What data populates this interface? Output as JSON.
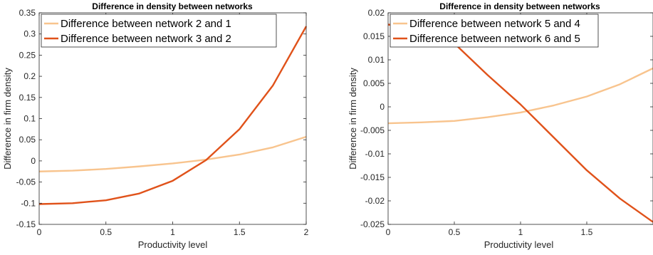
{
  "chart_data": [
    {
      "type": "line",
      "title": "Difference in density between networks",
      "xlabel": "Productivity level",
      "ylabel": "Difference in firm density",
      "xlim": [
        0,
        2
      ],
      "ylim": [
        -0.15,
        0.35
      ],
      "xticks": [
        "0",
        "0.5",
        "1",
        "1.5",
        "2"
      ],
      "yticks": [
        "-0.15",
        "-0.1",
        "-0.05",
        "0",
        "0.05",
        "0.1",
        "0.15",
        "0.2",
        "0.25",
        "0.3",
        "0.35"
      ],
      "legend_position": "top-left",
      "grid": false,
      "series": [
        {
          "name": "Difference between network 2 and 1",
          "color": "#F8C48E",
          "x": [
            0,
            0.25,
            0.5,
            0.75,
            1.0,
            1.25,
            1.5,
            1.75,
            2.0
          ],
          "values": [
            -0.025,
            -0.023,
            -0.019,
            -0.013,
            -0.006,
            0.003,
            0.015,
            0.032,
            0.057
          ]
        },
        {
          "name": "Difference between network 3 and 2",
          "color": "#E0521A",
          "x": [
            0,
            0.25,
            0.5,
            0.75,
            1.0,
            1.25,
            1.5,
            1.75,
            2.0
          ],
          "values": [
            -0.102,
            -0.1,
            -0.093,
            -0.077,
            -0.047,
            0.002,
            0.075,
            0.178,
            0.318
          ]
        }
      ]
    },
    {
      "type": "line",
      "title": "Difference in density between networks",
      "xlabel": "Productivity level",
      "ylabel": "Difference in firm density",
      "xlim": [
        0,
        2
      ],
      "ylim": [
        -0.025,
        0.02
      ],
      "xticks": [
        "0",
        "0.5",
        "1",
        "1.5"
      ],
      "yticks": [
        "-0.025",
        "-0.02",
        "-0.015",
        "-0.01",
        "-0.005",
        "0",
        "0.005",
        "0.01",
        "0.015",
        "0.02"
      ],
      "legend_position": "top-left",
      "grid": false,
      "series": [
        {
          "name": "Difference between network 5 and 4",
          "color": "#F8C48E",
          "x": [
            0,
            0.25,
            0.5,
            0.75,
            1.0,
            1.25,
            1.5,
            1.75,
            2.0
          ],
          "values": [
            -0.0035,
            -0.0033,
            -0.003,
            -0.0022,
            -0.0012,
            0.0003,
            0.0022,
            0.0048,
            0.0082
          ]
        },
        {
          "name": "Difference between network 6 and 5",
          "color": "#E0521A",
          "x": [
            0,
            0.25,
            0.5,
            0.75,
            1.0,
            1.25,
            1.5,
            1.75,
            2.0
          ],
          "values": [
            0.0175,
            0.0168,
            0.0135,
            0.0068,
            0.0005,
            -0.0065,
            -0.0135,
            -0.0195,
            -0.0245
          ]
        }
      ]
    }
  ]
}
